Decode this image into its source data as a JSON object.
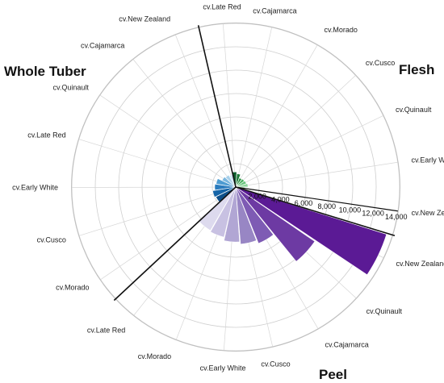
{
  "chart_data": {
    "type": "bar",
    "subtype": "polar-grouped",
    "radial_axis": {
      "ticks": [
        "2,000",
        "4,000",
        "6,000",
        "8,000",
        "10,000",
        "12,000",
        "14,000"
      ],
      "tick_values": [
        2000,
        4000,
        6000,
        8000,
        10000,
        12000,
        14000
      ],
      "range": [
        0,
        14000
      ],
      "grid": true
    },
    "groups": [
      {
        "name": "Flesh",
        "colors": [
          "#0a5c2a",
          "#1e7a3a",
          "#2f9348",
          "#46ad5c",
          "#66c27a",
          "#8dd49c",
          "#b8e6c1"
        ],
        "categories": [
          "cv.Late Red",
          "cv.Cajamarca",
          "cv.Morado",
          "cv.Cusco",
          "cv.Quinault",
          "cv.Early White",
          "cv.New Zealand"
        ],
        "values": [
          1300,
          1150,
          850,
          900,
          950,
          1050,
          800
        ]
      },
      {
        "name": "Peel",
        "colors": [
          "#5b1a95",
          "#6d3aa3",
          "#7e5bb4",
          "#9886c4",
          "#b1a6d4",
          "#c8c1e2",
          "#dddaee"
        ],
        "categories": [
          "cv.New Zealand",
          "cv.Quinault",
          "cv.Cajamarca",
          "cv.Cusco",
          "cv.Early White",
          "cv.Morado",
          "cv.Late Red"
        ],
        "values": [
          13500,
          8200,
          5200,
          4900,
          4700,
          4400,
          4300
        ]
      },
      {
        "name": "Whole Tuber",
        "colors": [
          "#0d4f8a",
          "#1565a8",
          "#2a7bbd",
          "#4d9bd1",
          "#7ab6de",
          "#a6cfe9",
          "#cfe5f3"
        ],
        "categories": [
          "cv.Morado",
          "cv.Cusco",
          "cv.Early White",
          "cv.Late Red",
          "cv.Quinault",
          "cv.Cajamarca",
          "cv.New Zealand"
        ],
        "values": [
          1900,
          2000,
          1800,
          1700,
          1300,
          1200,
          1100
        ]
      }
    ]
  }
}
